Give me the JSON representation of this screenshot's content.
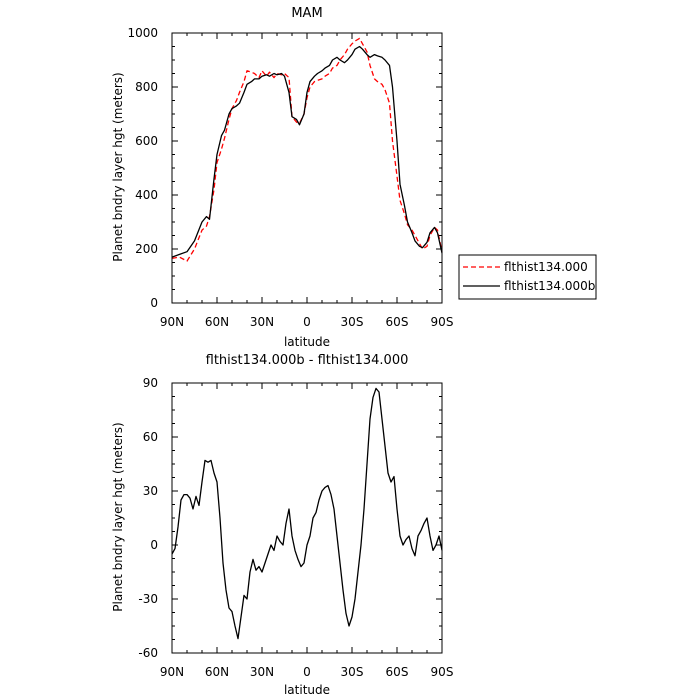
{
  "chart_data": [
    {
      "type": "line",
      "title": "MAM",
      "xlabel": "latitude",
      "ylabel": "Planet bndry layer hgt (meters)",
      "xlim": [
        90,
        -90
      ],
      "ylim": [
        0,
        1000
      ],
      "xtick_labels": [
        "90N",
        "60N",
        "30N",
        "0",
        "30S",
        "60S",
        "90S"
      ],
      "ytick_labels": [
        "0",
        "200",
        "400",
        "600",
        "800",
        "1000"
      ],
      "legend_position": "right",
      "x": [
        90,
        85,
        80,
        75,
        70,
        67,
        65,
        62,
        60,
        57,
        55,
        52,
        50,
        47,
        45,
        42,
        40,
        37,
        35,
        32,
        30,
        27,
        25,
        22,
        20,
        17,
        15,
        12,
        10,
        7,
        5,
        2,
        0,
        -2,
        -5,
        -7,
        -10,
        -12,
        -15,
        -17,
        -20,
        -22,
        -25,
        -27,
        -30,
        -32,
        -35,
        -37,
        -40,
        -42,
        -45,
        -47,
        -50,
        -52,
        -55,
        -57,
        -60,
        -62,
        -65,
        -67,
        -70,
        -72,
        -75,
        -77,
        -80,
        -82,
        -85,
        -87,
        -90
      ],
      "series": [
        {
          "name": "flthist134.000",
          "color": "#ff0000",
          "dash": "dashed",
          "values": [
            165,
            170,
            155,
            200,
            270,
            285,
            320,
            420,
            520,
            570,
            610,
            680,
            720,
            750,
            780,
            820,
            860,
            855,
            850,
            835,
            860,
            840,
            855,
            835,
            850,
            845,
            850,
            835,
            690,
            670,
            665,
            700,
            760,
            800,
            820,
            825,
            830,
            840,
            850,
            870,
            880,
            900,
            920,
            940,
            960,
            970,
            980,
            960,
            930,
            880,
            830,
            820,
            810,
            790,
            740,
            600,
            470,
            380,
            330,
            290,
            270,
            250,
            220,
            200,
            210,
            250,
            280,
            270,
            190
          ]
        },
        {
          "name": "flthist134.000b",
          "color": "#000000",
          "dash": "solid",
          "values": [
            170,
            180,
            190,
            230,
            300,
            320,
            310,
            460,
            550,
            620,
            640,
            700,
            720,
            730,
            740,
            780,
            810,
            820,
            830,
            830,
            840,
            845,
            840,
            850,
            845,
            850,
            840,
            780,
            690,
            680,
            660,
            700,
            780,
            820,
            840,
            850,
            860,
            870,
            880,
            900,
            910,
            900,
            890,
            900,
            920,
            940,
            950,
            940,
            920,
            910,
            920,
            915,
            910,
            900,
            880,
            800,
            600,
            440,
            360,
            300,
            260,
            230,
            210,
            205,
            225,
            260,
            280,
            260,
            185
          ]
        }
      ]
    },
    {
      "type": "line",
      "title": "flthist134.000b - flthist134.000",
      "xlabel": "latitude",
      "ylabel": "Planet bndry layer hgt (meters)",
      "xlim": [
        90,
        -90
      ],
      "ylim": [
        -60,
        90
      ],
      "xtick_labels": [
        "90N",
        "60N",
        "30N",
        "0",
        "30S",
        "60S",
        "90S"
      ],
      "ytick_labels": [
        "-60",
        "-30",
        "0",
        "30",
        "60",
        "90"
      ],
      "x": [
        90,
        88,
        86,
        84,
        82,
        80,
        78,
        76,
        74,
        72,
        70,
        68,
        66,
        64,
        62,
        60,
        58,
        56,
        54,
        52,
        50,
        48,
        46,
        44,
        42,
        40,
        38,
        36,
        34,
        32,
        30,
        28,
        26,
        24,
        22,
        20,
        18,
        16,
        14,
        12,
        10,
        8,
        6,
        4,
        2,
        0,
        -2,
        -4,
        -6,
        -8,
        -10,
        -12,
        -14,
        -16,
        -18,
        -20,
        -22,
        -24,
        -26,
        -28,
        -30,
        -32,
        -34,
        -36,
        -38,
        -40,
        -42,
        -44,
        -46,
        -48,
        -50,
        -52,
        -54,
        -56,
        -58,
        -60,
        -62,
        -64,
        -66,
        -68,
        -70,
        -72,
        -74,
        -76,
        -78,
        -80,
        -82,
        -84,
        -86,
        -88,
        -90
      ],
      "series": [
        {
          "name": "",
          "color": "#000000",
          "values": [
            -5,
            -2,
            10,
            25,
            28,
            28,
            26,
            20,
            27,
            22,
            35,
            47,
            46,
            47,
            40,
            35,
            15,
            -10,
            -25,
            -35,
            -37,
            -45,
            -52,
            -40,
            -28,
            -30,
            -15,
            -8,
            -14,
            -12,
            -15,
            -10,
            -5,
            0,
            -3,
            5,
            2,
            0,
            12,
            20,
            5,
            -3,
            -8,
            -12,
            -10,
            0,
            5,
            15,
            18,
            25,
            30,
            32,
            33,
            28,
            20,
            5,
            -10,
            -25,
            -38,
            -45,
            -40,
            -30,
            -15,
            0,
            20,
            45,
            70,
            82,
            87,
            85,
            70,
            55,
            40,
            35,
            38,
            20,
            5,
            0,
            3,
            5,
            -2,
            -6,
            5,
            8,
            12,
            15,
            5,
            -3,
            0,
            5,
            -3
          ]
        }
      ]
    }
  ]
}
